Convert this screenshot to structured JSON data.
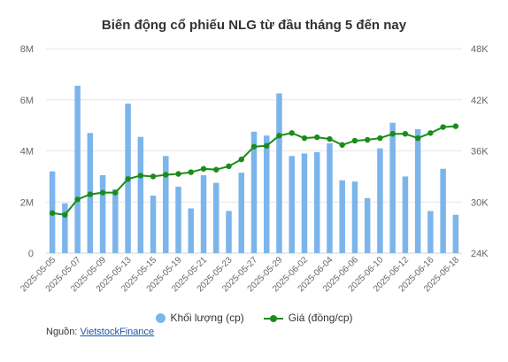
{
  "chart_data": {
    "type": "bar+line",
    "title": "Biến động cổ phiếu NLG từ đầu tháng 5 đến nay",
    "categories": [
      "2025-05-05",
      "2025-05-06",
      "2025-05-07",
      "2025-05-08",
      "2025-05-09",
      "2025-05-12",
      "2025-05-13",
      "2025-05-14",
      "2025-05-15",
      "2025-05-16",
      "2025-05-19",
      "2025-05-20",
      "2025-05-21",
      "2025-05-22",
      "2025-05-23",
      "2025-05-26",
      "2025-05-27",
      "2025-05-28",
      "2025-05-29",
      "2025-05-30",
      "2025-06-02",
      "2025-06-03",
      "2025-06-04",
      "2025-06-05",
      "2025-06-06",
      "2025-06-09",
      "2025-06-10",
      "2025-06-11",
      "2025-06-12",
      "2025-06-13",
      "2025-06-16",
      "2025-06-17",
      "2025-06-18"
    ],
    "x_tick_labels": [
      "2025-05-05",
      "2025-05-07",
      "2025-05-09",
      "2025-05-13",
      "2025-05-15",
      "2025-05-19",
      "2025-05-21",
      "2025-05-23",
      "2025-05-27",
      "2025-05-29",
      "2025-06-02",
      "2025-06-04",
      "2025-06-06",
      "2025-06-10",
      "2025-06-12",
      "2025-06-16",
      "2025-06-18"
    ],
    "series": [
      {
        "name": "Khối lượng (cp)",
        "type": "bar",
        "axis": "left",
        "color": "#7cb5ec",
        "values": [
          3200000,
          1950000,
          6550000,
          4700000,
          3050000,
          2500000,
          5850000,
          4550000,
          2250000,
          3800000,
          2600000,
          1750000,
          3050000,
          2750000,
          1650000,
          3150000,
          4750000,
          4600000,
          6250000,
          3800000,
          3900000,
          3950000,
          4300000,
          2850000,
          2800000,
          2150000,
          4100000,
          5100000,
          3000000,
          4850000,
          1650000,
          3300000,
          1500000
        ]
      },
      {
        "name": "Giá (đồng/cp)",
        "type": "line",
        "axis": "right",
        "color": "#1a8c1a",
        "values": [
          28700,
          28500,
          30300,
          30900,
          31100,
          31100,
          32700,
          33100,
          33000,
          33200,
          33300,
          33500,
          33900,
          33800,
          34200,
          35000,
          36500,
          36600,
          37800,
          38100,
          37500,
          37600,
          37400,
          36700,
          37200,
          37300,
          37500,
          38000,
          38000,
          37500,
          38100,
          38800,
          38900
        ]
      }
    ],
    "y_left": {
      "ticks": [
        "0",
        "2M",
        "4M",
        "6M",
        "8M"
      ],
      "range": [
        0,
        8000000
      ]
    },
    "y_right": {
      "ticks": [
        "24K",
        "30K",
        "36K",
        "42K",
        "48K"
      ],
      "range": [
        24000,
        48000
      ]
    },
    "legend_position": "bottom-center",
    "grid": "horizontal"
  },
  "source": {
    "label": "Nguồn:",
    "link_text": "VietstockFinance"
  }
}
